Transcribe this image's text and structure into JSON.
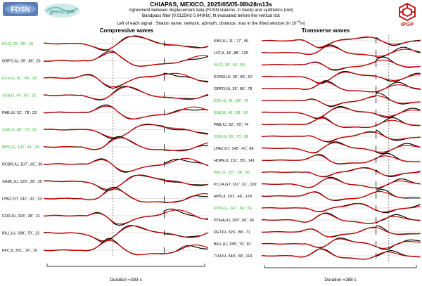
{
  "header": {
    "title": "CHIAPAS, MEXICO, 2025/05/05-08h28m13s",
    "line1": "Agreement between displacement data (FDSN stations, in black) and synthetics (red)",
    "line2": "Bandpass filter [0.0125Hz 0.040Hz], fit evaluated before the vertical tick",
    "line3": "Left of each signal : Station name, network, azimuth, distance, max in the fitted window (in 10",
    "line3_exp": "−8",
    "line3_end": "m)",
    "logo_left_text": "FDSN",
    "logo_mid_text": "geoscope",
    "logo_right_text": "IPGP"
  },
  "colors": {
    "data": "#000000",
    "synthetic": "#d00000",
    "highlight_label": "#27b827",
    "normal_label": "#000000",
    "logo_red": "#c41a1a"
  },
  "chart_data": [
    {
      "type": "line",
      "title": "Compressive waves",
      "xlabel": "Duration =283 s",
      "stations": [
        {
          "name": "IVI,G",
          "azimuth": "25",
          "distance": "55",
          "max": "18",
          "highlight": true
        },
        {
          "name": "GRFO,IU",
          "azimuth": "39",
          "distance": "86",
          "max": "20",
          "highlight": false
        },
        {
          "name": "ECH,G",
          "azimuth": "41",
          "distance": "84",
          "max": "18",
          "highlight": true
        },
        {
          "name": "SSB,G",
          "azimuth": "45",
          "distance": "83",
          "max": "21",
          "highlight": true
        },
        {
          "name": "PAB,IU",
          "azimuth": "52",
          "distance": "78",
          "max": "23",
          "highlight": false
        },
        {
          "name": "SOK,G",
          "azimuth": "80",
          "distance": "73",
          "max": "29",
          "highlight": true
        },
        {
          "name": "MPG,G",
          "azimuth": "102",
          "distance": "41",
          "max": "39",
          "highlight": true
        },
        {
          "name": "RCBR,IU",
          "azimuth": "107",
          "distance": "60",
          "max": "30",
          "highlight": false
        },
        {
          "name": "SAML,IU",
          "azimuth": "129",
          "distance": "39",
          "max": "35",
          "highlight": false
        },
        {
          "name": "LPAZ,GT",
          "azimuth": "142",
          "distance": "41",
          "max": "33",
          "highlight": false
        },
        {
          "name": "COR,IU",
          "azimuth": "324",
          "distance": "38",
          "max": "21",
          "highlight": false
        },
        {
          "name": "BILL,IU",
          "azimuth": "338",
          "distance": "79",
          "max": "13",
          "highlight": false
        },
        {
          "name": "FFC,II",
          "azimuth": "351",
          "distance": "39",
          "max": "10",
          "highlight": false
        }
      ]
    },
    {
      "type": "line",
      "title": "Transverse waves",
      "xlabel": "Duration =288 s",
      "stations": [
        {
          "name": "KBS,IU",
          "azimuth": "11",
          "distance": "77",
          "max": "90",
          "highlight": false
        },
        {
          "name": "LVZ,II",
          "azimuth": "18",
          "distance": "88",
          "max": "125",
          "highlight": false
        },
        {
          "name": "IVI,G",
          "azimuth": "25",
          "distance": "55",
          "max": "89",
          "highlight": true
        },
        {
          "name": "KONO,IU",
          "azimuth": "30",
          "distance": "82",
          "max": "97",
          "highlight": false
        },
        {
          "name": "GRFO,IU",
          "azimuth": "39",
          "distance": "86",
          "max": "78",
          "highlight": false
        },
        {
          "name": "ECH,G",
          "azimuth": "41",
          "distance": "84",
          "max": "79",
          "highlight": true
        },
        {
          "name": "SSB,G",
          "azimuth": "45",
          "distance": "83",
          "max": "56",
          "highlight": true
        },
        {
          "name": "PAB,IU",
          "azimuth": "52",
          "distance": "78",
          "max": "74",
          "highlight": false
        },
        {
          "name": "SOK,G",
          "azimuth": "80",
          "distance": "73",
          "max": "28",
          "highlight": true
        },
        {
          "name": "LPAZ,GT",
          "azimuth": "142",
          "distance": "41",
          "max": "88",
          "highlight": false
        },
        {
          "name": "HOPE,II",
          "azimuth": "151",
          "distance": "85",
          "max": "141",
          "highlight": false
        },
        {
          "name": "PEL,G",
          "azimuth": "157",
          "distance": "54",
          "max": "95",
          "highlight": true
        },
        {
          "name": "PLCA,GT",
          "azimuth": "161",
          "distance": "61",
          "max": "102",
          "highlight": false
        },
        {
          "name": "RPN,II",
          "azimuth": "201",
          "distance": "46",
          "max": "129",
          "highlight": false
        },
        {
          "name": "PPTF,G",
          "azimuth": "241",
          "distance": "66",
          "max": "56",
          "highlight": true
        },
        {
          "name": "POHA,IU",
          "azimuth": "283",
          "distance": "60",
          "max": "66",
          "highlight": false
        },
        {
          "name": "PET,IU",
          "azimuth": "325",
          "distance": "88",
          "max": "71",
          "highlight": false
        },
        {
          "name": "BILL,IU",
          "azimuth": "338",
          "distance": "79",
          "max": "87",
          "highlight": false
        },
        {
          "name": "TIXI,IU",
          "azimuth": "348",
          "distance": "68",
          "max": "114",
          "highlight": false
        }
      ]
    }
  ]
}
